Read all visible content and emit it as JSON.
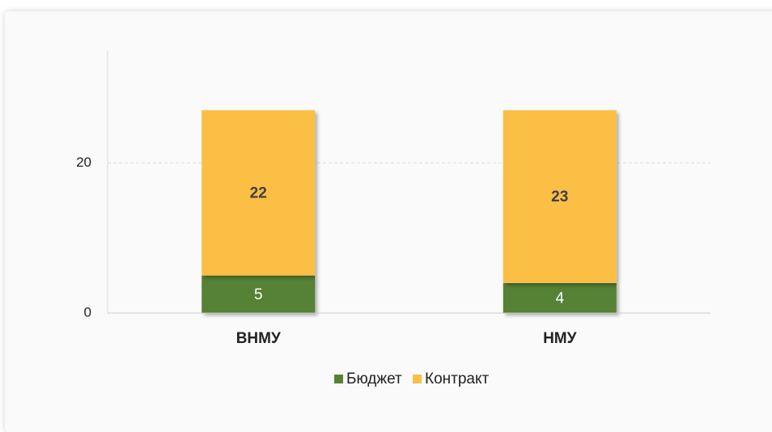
{
  "chart_data": {
    "type": "stacked_bar",
    "categories": [
      "ВНМУ",
      "НМУ"
    ],
    "series": [
      {
        "name": "Бюджет",
        "color": "#548235",
        "values": [
          5,
          4
        ]
      },
      {
        "name": "Контракт",
        "color": "#fbbf45",
        "values": [
          22,
          23
        ]
      }
    ],
    "ylim": [
      0,
      35
    ],
    "yticks": [
      0,
      20
    ],
    "grid": true,
    "legend": "bottom"
  }
}
